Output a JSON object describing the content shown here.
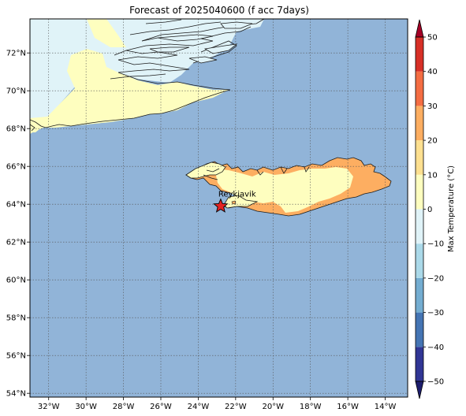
{
  "title": "Forecast of 2025040600 (f acc 7days)",
  "map": {
    "lon_range": [
      -33,
      -12.8
    ],
    "lat_range": [
      53.8,
      73.8
    ],
    "lon_ticks": [
      {
        "value": -32,
        "label": "32°W"
      },
      {
        "value": -30,
        "label": "30°W"
      },
      {
        "value": -28,
        "label": "28°W"
      },
      {
        "value": -26,
        "label": "26°W"
      },
      {
        "value": -24,
        "label": "24°W"
      },
      {
        "value": -22,
        "label": "22°W"
      },
      {
        "value": -20,
        "label": "20°W"
      },
      {
        "value": -18,
        "label": "18°W"
      },
      {
        "value": -16,
        "label": "16°W"
      },
      {
        "value": -14,
        "label": "14°W"
      }
    ],
    "lat_ticks": [
      {
        "value": 72,
        "label": "72°N"
      },
      {
        "value": 70,
        "label": "70°N"
      },
      {
        "value": 68,
        "label": "68°N"
      },
      {
        "value": 66,
        "label": "66°N"
      },
      {
        "value": 64,
        "label": "64°N"
      },
      {
        "value": 62,
        "label": "62°N"
      },
      {
        "value": 60,
        "label": "60°N"
      },
      {
        "value": 58,
        "label": "58°N"
      },
      {
        "value": 56,
        "label": "56°N"
      },
      {
        "value": 54,
        "label": "54°N"
      }
    ],
    "grid": true,
    "ocean_color": "#91b4d8",
    "marker": {
      "label": "Reykjavik",
      "lon": -22.8,
      "lat": 63.9,
      "color": "#e32424"
    }
  },
  "colorbar": {
    "label": "Max Temperature (°C)",
    "levels": [
      -50,
      -40,
      -30,
      -20,
      -10,
      0,
      10,
      20,
      30,
      40,
      50
    ],
    "tick_labels": [
      "−50",
      "−40",
      "−30",
      "−20",
      "−10",
      "0",
      "10",
      "20",
      "30",
      "40",
      "50"
    ],
    "colors": [
      "#313695",
      "#4575b4",
      "#74add1",
      "#abd9e9",
      "#e0f3f8",
      "#fefebf",
      "#fee090",
      "#fdae61",
      "#f46d43",
      "#d73027"
    ],
    "extend_low_color": "#1d1d6e",
    "extend_high_color": "#a50026"
  }
}
